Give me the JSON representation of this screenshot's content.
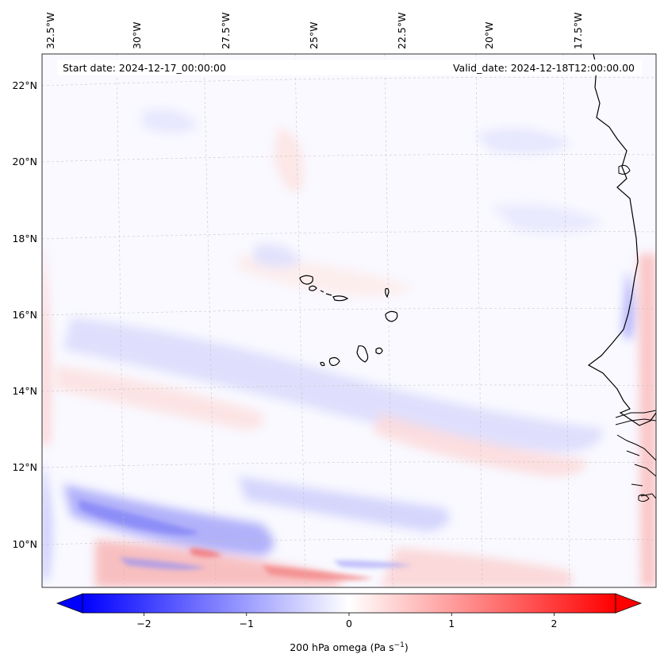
{
  "annotations": {
    "start_date": "Start date: 2024-12-17_00:00:00",
    "valid_date": "Valid_date: 2024-12-18T12:00:00.00"
  },
  "longitude_labels": [
    "32.5°W",
    "30°W",
    "27.5°W",
    "25°W",
    "22.5°W",
    "20°W",
    "17.5°W"
  ],
  "latitude_labels": [
    "22°N",
    "20°N",
    "18°N",
    "16°N",
    "14°N",
    "12°N",
    "10°N"
  ],
  "colorbar": {
    "ticks": [
      -2,
      -1,
      0,
      1,
      2
    ],
    "tick_labels": [
      "−2",
      "−1",
      "0",
      "1",
      "2"
    ],
    "range": [
      -2.6,
      2.6
    ],
    "label_main": "200 hPa omega (Pa s",
    "label_sup": "−1",
    "label_close": ")",
    "colormap": "bwr",
    "low_color": "#0000ff",
    "mid_color": "#ffffff",
    "high_color": "#ff0000"
  },
  "chart_data": {
    "type": "heatmap",
    "variable": "200 hPa omega",
    "units": "Pa s^-1",
    "value_range": [
      -2.6,
      2.6
    ],
    "lon_range": [
      -33.0,
      -15.5
    ],
    "lat_range": [
      8.9,
      22.8
    ],
    "features": [
      {
        "name": "Cape Verde islands",
        "approx_lat": 15.8,
        "approx_lon": -24.0
      },
      {
        "name": "West African coast (Mauritania, Senegal, Gambia, Guinea-Bissau)",
        "approx_lat": 15.0,
        "approx_lon": -17.0
      }
    ]
  }
}
